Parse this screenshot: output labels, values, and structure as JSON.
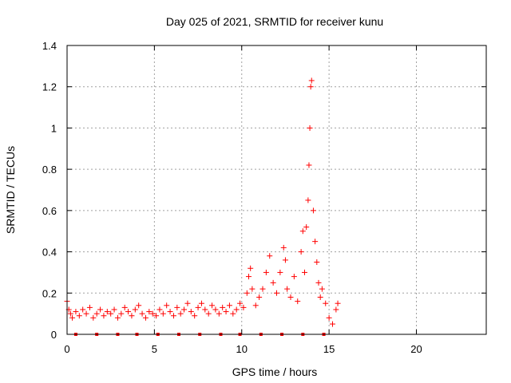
{
  "chart_data": {
    "type": "scatter",
    "title": "Day 025 of 2021, SRMTID for receiver kunu",
    "xlabel": "GPS time / hours",
    "ylabel": "SRMTID / TECUs",
    "xlim": [
      0,
      24
    ],
    "ylim": [
      0,
      1.4
    ],
    "x_ticks": [
      0,
      5,
      10,
      15,
      20
    ],
    "x_tick_labels": [
      "0",
      "5",
      "10",
      "15",
      "20"
    ],
    "y_ticks": [
      0,
      0.2,
      0.4,
      0.6,
      0.8,
      1.0,
      1.2,
      1.4
    ],
    "y_tick_labels": [
      "0",
      "0.2",
      "0.4",
      "0.6",
      "0.8",
      "1",
      "1.2",
      "1.4"
    ],
    "grid": true,
    "marker": "+",
    "color": "#ff0000",
    "series": [
      {
        "name": "SRMTID",
        "x": [
          0.0,
          0.1,
          0.2,
          0.3,
          0.5,
          0.7,
          0.9,
          1.1,
          1.3,
          1.5,
          1.7,
          1.9,
          2.1,
          2.3,
          2.5,
          2.7,
          2.9,
          3.1,
          3.3,
          3.5,
          3.7,
          3.9,
          4.1,
          4.3,
          4.5,
          4.7,
          4.9,
          5.1,
          5.3,
          5.5,
          5.7,
          5.9,
          6.1,
          6.3,
          6.5,
          6.7,
          6.9,
          7.1,
          7.3,
          7.5,
          7.7,
          7.9,
          8.1,
          8.3,
          8.5,
          8.7,
          8.9,
          9.1,
          9.3,
          9.5,
          9.7,
          9.9,
          10.1,
          10.3,
          10.4,
          10.5,
          10.6,
          10.8,
          11.0,
          11.2,
          11.4,
          11.6,
          11.8,
          12.0,
          12.2,
          12.4,
          12.5,
          12.6,
          12.8,
          13.0,
          13.2,
          13.4,
          13.5,
          13.6,
          13.7,
          13.8,
          13.85,
          13.9,
          13.95,
          14.0,
          14.1,
          14.2,
          14.3,
          14.4,
          14.5,
          14.6,
          14.8,
          15.0,
          15.2,
          15.4,
          15.5
        ],
        "y": [
          0.16,
          0.12,
          0.1,
          0.08,
          0.11,
          0.09,
          0.12,
          0.1,
          0.13,
          0.08,
          0.1,
          0.12,
          0.09,
          0.11,
          0.1,
          0.12,
          0.08,
          0.1,
          0.13,
          0.11,
          0.09,
          0.12,
          0.14,
          0.1,
          0.08,
          0.11,
          0.1,
          0.09,
          0.12,
          0.1,
          0.14,
          0.11,
          0.09,
          0.13,
          0.1,
          0.12,
          0.15,
          0.11,
          0.09,
          0.13,
          0.15,
          0.12,
          0.1,
          0.14,
          0.12,
          0.1,
          0.13,
          0.11,
          0.14,
          0.1,
          0.12,
          0.15,
          0.13,
          0.2,
          0.28,
          0.32,
          0.22,
          0.14,
          0.18,
          0.22,
          0.3,
          0.38,
          0.25,
          0.2,
          0.3,
          0.42,
          0.36,
          0.22,
          0.18,
          0.28,
          0.16,
          0.4,
          0.5,
          0.3,
          0.52,
          0.65,
          0.82,
          1.0,
          1.2,
          1.23,
          0.6,
          0.45,
          0.35,
          0.25,
          0.18,
          0.22,
          0.15,
          0.08,
          0.05,
          0.12,
          0.15
        ]
      }
    ],
    "bottom_markers_x": [
      0.5,
      1.7,
      2.9,
      4.0,
      5.2,
      6.4,
      7.6,
      8.8,
      9.9,
      11.1,
      12.3,
      13.5,
      14.7
    ]
  }
}
